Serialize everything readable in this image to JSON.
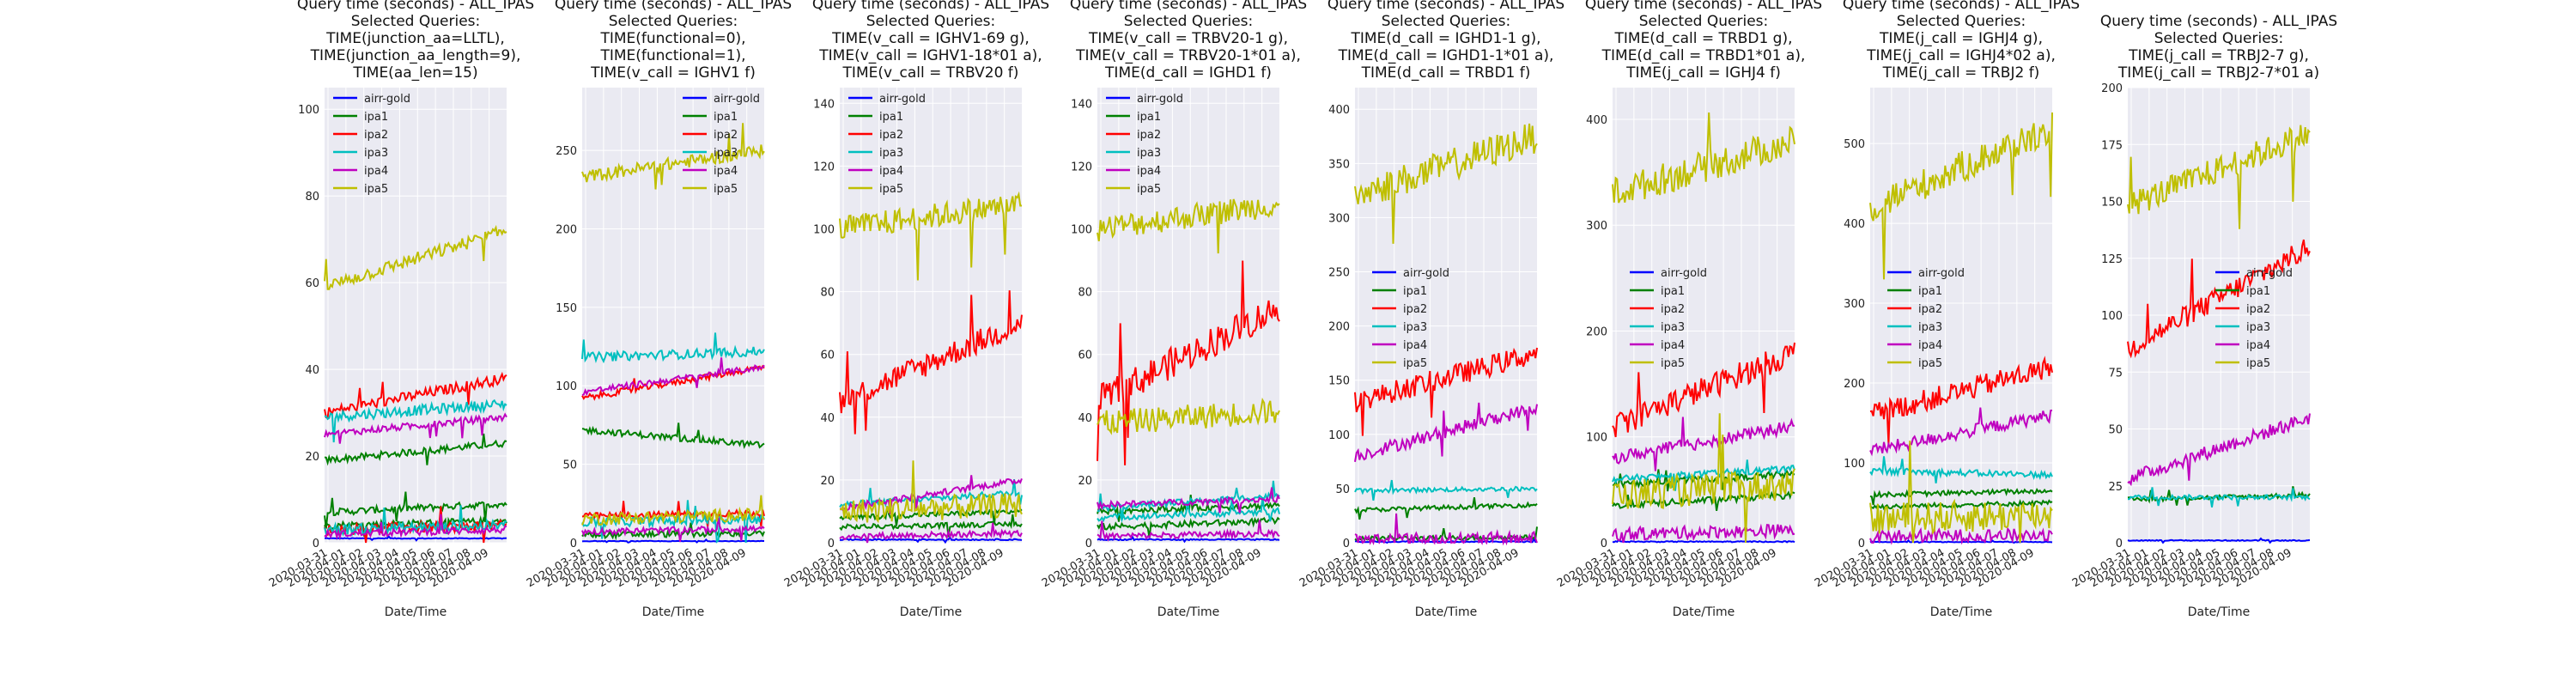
{
  "figure": {
    "colors": {
      "axes_bg": "#eaeaf2",
      "grid": "#ffffff",
      "airr-gold": "#0000ff",
      "ipa1": "#008000",
      "ipa2": "#ff0000",
      "ipa3": "#00bfbf",
      "ipa4": "#bf00bf",
      "ipa5": "#bfbf00"
    }
  },
  "chart_data": [
    {
      "type": "line",
      "title": [
        "Query time (seconds) - ALL_IPAS",
        "Selected Queries:",
        "TIME(junction_aa=LLTL),",
        "TIME(junction_aa_length=9),",
        "TIME(aa_len=15)"
      ],
      "xlabel": "Date/Time",
      "ylabel": "",
      "x_ticks": [
        "2020-03-31",
        "2020-04-01",
        "2020-04-02",
        "2020-04-03",
        "2020-04-04",
        "2020-04-05",
        "2020-04-06",
        "2020-04-07",
        "2020-04-08",
        "2020-04-09"
      ],
      "ylim": [
        0,
        105
      ],
      "y_ticks": [
        0,
        20,
        40,
        60,
        80,
        100
      ],
      "legend_position": "top-left",
      "grid": true,
      "series": [
        {
          "name": "airr-gold",
          "color": "#0000ff",
          "levels": [
            [
              1,
              1
            ]
          ],
          "noise": 0.1
        },
        {
          "name": "ipa1",
          "color": "#008000",
          "levels": [
            [
              19,
              23
            ],
            [
              7,
              9
            ],
            [
              4,
              5
            ]
          ],
          "noise": 0.8
        },
        {
          "name": "ipa2",
          "color": "#ff0000",
          "levels": [
            [
              30,
              38
            ],
            [
              3,
              4
            ]
          ],
          "noise": 1.2
        },
        {
          "name": "ipa3",
          "color": "#00bfbf",
          "levels": [
            [
              29,
              32
            ],
            [
              3,
              4
            ]
          ],
          "noise": 1.2
        },
        {
          "name": "ipa4",
          "color": "#bf00bf",
          "levels": [
            [
              25,
              29
            ],
            [
              2,
              3
            ]
          ],
          "noise": 0.8
        },
        {
          "name": "ipa5",
          "color": "#bfbf00",
          "levels": [
            [
              59,
              72
            ]
          ],
          "noise": 1.5
        }
      ]
    },
    {
      "type": "line",
      "title": [
        "Query time (seconds) - ALL_IPAS",
        "Selected Queries:",
        "TIME(functional=0),",
        "TIME(functional=1),",
        "TIME(v_call = IGHV1 f)"
      ],
      "xlabel": "Date/Time",
      "ylabel": "",
      "x_ticks": [
        "2020-03-31",
        "2020-04-01",
        "2020-04-02",
        "2020-04-03",
        "2020-04-04",
        "2020-04-05",
        "2020-04-06",
        "2020-04-07",
        "2020-04-08",
        "2020-04-09"
      ],
      "ylim": [
        0,
        290
      ],
      "y_ticks": [
        0,
        50,
        100,
        150,
        200,
        250
      ],
      "legend_position": "top-right",
      "grid": true,
      "series": [
        {
          "name": "airr-gold",
          "color": "#0000ff",
          "levels": [
            [
              1,
              1
            ]
          ],
          "noise": 0.2
        },
        {
          "name": "ipa1",
          "color": "#008000",
          "levels": [
            [
              72,
              62
            ],
            [
              5,
              6
            ]
          ],
          "noise": 2
        },
        {
          "name": "ipa2",
          "color": "#ff0000",
          "levels": [
            [
              92,
              112
            ],
            [
              17,
              19
            ]
          ],
          "noise": 2
        },
        {
          "name": "ipa3",
          "color": "#00bfbf",
          "levels": [
            [
              118,
              122
            ],
            [
              13,
              15
            ]
          ],
          "noise": 3
        },
        {
          "name": "ipa4",
          "color": "#bf00bf",
          "levels": [
            [
              96,
              112
            ],
            [
              7,
              9
            ]
          ],
          "noise": 2
        },
        {
          "name": "ipa5",
          "color": "#bfbf00",
          "levels": [
            [
              233,
              250
            ],
            [
              15,
              18
            ]
          ],
          "noise": 4
        }
      ]
    },
    {
      "type": "line",
      "title": [
        "Query time (seconds) - ALL_IPAS",
        "Selected Queries:",
        "TIME(v_call = IGHV1-69 g),",
        "TIME(v_call = IGHV1-18*01 a),",
        "TIME(v_call = TRBV20 f)"
      ],
      "xlabel": "Date/Time",
      "ylabel": "",
      "x_ticks": [
        "2020-03-31",
        "2020-04-01",
        "2020-04-02",
        "2020-04-03",
        "2020-04-04",
        "2020-04-05",
        "2020-04-06",
        "2020-04-07",
        "2020-04-08",
        "2020-04-09"
      ],
      "ylim": [
        0,
        145
      ],
      "y_ticks": [
        0,
        20,
        40,
        60,
        80,
        100,
        120,
        140
      ],
      "legend_position": "top-left",
      "grid": true,
      "series": [
        {
          "name": "airr-gold",
          "color": "#0000ff",
          "levels": [
            [
              1,
              1
            ]
          ],
          "noise": 0.2
        },
        {
          "name": "ipa1",
          "color": "#008000",
          "levels": [
            [
              8,
              10
            ],
            [
              5,
              6
            ]
          ],
          "noise": 0.8
        },
        {
          "name": "ipa2",
          "color": "#ff0000",
          "levels": [
            [
              45,
              70
            ]
          ],
          "noise": 4
        },
        {
          "name": "ipa3",
          "color": "#00bfbf",
          "levels": [
            [
              12,
              16
            ]
          ],
          "noise": 1
        },
        {
          "name": "ipa4",
          "color": "#bf00bf",
          "levels": [
            [
              11,
              20
            ],
            [
              2,
              3
            ]
          ],
          "noise": 1
        },
        {
          "name": "ipa5",
          "color": "#bfbf00",
          "levels": [
            [
              100,
              108
            ],
            [
              10,
              12
            ]
          ],
          "noise": 4
        }
      ]
    },
    {
      "type": "line",
      "title": [
        "Query time (seconds) - ALL_IPAS",
        "Selected Queries:",
        "TIME(v_call = TRBV20-1 g),",
        "TIME(v_call = TRBV20-1*01  a),",
        "TIME(d_call = IGHD1 f)"
      ],
      "xlabel": "Date/Time",
      "ylabel": "",
      "x_ticks": [
        "2020-03-31",
        "2020-04-01",
        "2020-04-02",
        "2020-04-03",
        "2020-04-04",
        "2020-04-05",
        "2020-04-06",
        "2020-04-07",
        "2020-04-08",
        "2020-04-09"
      ],
      "ylim": [
        0,
        145
      ],
      "y_ticks": [
        0,
        20,
        40,
        60,
        80,
        100,
        120,
        140
      ],
      "legend_position": "top-left",
      "grid": true,
      "series": [
        {
          "name": "airr-gold",
          "color": "#0000ff",
          "levels": [
            [
              1,
              1
            ]
          ],
          "noise": 0.2
        },
        {
          "name": "ipa1",
          "color": "#008000",
          "levels": [
            [
              10,
              12
            ],
            [
              5,
              7
            ]
          ],
          "noise": 1
        },
        {
          "name": "ipa2",
          "color": "#ff0000",
          "levels": [
            [
              45,
              75
            ]
          ],
          "noise": 5
        },
        {
          "name": "ipa3",
          "color": "#00bfbf",
          "levels": [
            [
              11,
              15
            ],
            [
              8,
              10
            ]
          ],
          "noise": 1
        },
        {
          "name": "ipa4",
          "color": "#bf00bf",
          "levels": [
            [
              12,
              14
            ],
            [
              2,
              3
            ]
          ],
          "noise": 1
        },
        {
          "name": "ipa5",
          "color": "#bfbf00",
          "levels": [
            [
              100,
              108
            ],
            [
              38,
              42
            ]
          ],
          "noise": 4
        }
      ]
    },
    {
      "type": "line",
      "title": [
        "Query time (seconds) - ALL_IPAS",
        "Selected Queries:",
        "TIME(d_call = IGHD1-1 g),",
        "TIME(d_call = IGHD1-1*01 a),",
        "TIME(d_call = TRBD1 f)"
      ],
      "xlabel": "Date/Time",
      "ylabel": "",
      "x_ticks": [
        "2020-03-31",
        "2020-04-01",
        "2020-04-02",
        "2020-04-03",
        "2020-04-04",
        "2020-04-05",
        "2020-04-06",
        "2020-04-07",
        "2020-04-08",
        "2020-04-09"
      ],
      "ylim": [
        0,
        420
      ],
      "y_ticks": [
        0,
        50,
        100,
        150,
        200,
        250,
        300,
        350,
        400
      ],
      "legend_position": "center-left",
      "grid": true,
      "series": [
        {
          "name": "airr-gold",
          "color": "#0000ff",
          "levels": [
            [
              1,
              1
            ]
          ],
          "noise": 0.5
        },
        {
          "name": "ipa1",
          "color": "#008000",
          "levels": [
            [
              30,
              35
            ],
            [
              4,
              5
            ]
          ],
          "noise": 2
        },
        {
          "name": "ipa2",
          "color": "#ff0000",
          "levels": [
            [
              130,
              175
            ]
          ],
          "noise": 10
        },
        {
          "name": "ipa3",
          "color": "#00bfbf",
          "levels": [
            [
              48,
              50
            ]
          ],
          "noise": 2
        },
        {
          "name": "ipa4",
          "color": "#bf00bf",
          "levels": [
            [
              80,
              125
            ],
            [
              3,
              4
            ]
          ],
          "noise": 6
        },
        {
          "name": "ipa5",
          "color": "#bfbf00",
          "levels": [
            [
              320,
              375
            ]
          ],
          "noise": 15
        }
      ]
    },
    {
      "type": "line",
      "title": [
        "Query time (seconds) - ALL_IPAS",
        "Selected Queries:",
        "TIME(d_call = TRBD1 g),",
        "TIME(d_call = TRBD1*01 a),",
        "TIME(j_call = IGHJ4 f)"
      ],
      "xlabel": "Date/Time",
      "ylabel": "",
      "x_ticks": [
        "2020-03-31",
        "2020-04-01",
        "2020-04-02",
        "2020-04-03",
        "2020-04-04",
        "2020-04-05",
        "2020-04-06",
        "2020-04-07",
        "2020-04-08",
        "2020-04-09"
      ],
      "ylim": [
        0,
        430
      ],
      "y_ticks": [
        0,
        100,
        200,
        300,
        400
      ],
      "legend_position": "center-left",
      "grid": true,
      "series": [
        {
          "name": "airr-gold",
          "color": "#0000ff",
          "levels": [
            [
              1,
              1
            ]
          ],
          "noise": 0.5
        },
        {
          "name": "ipa1",
          "color": "#008000",
          "levels": [
            [
              55,
              65
            ],
            [
              35,
              45
            ]
          ],
          "noise": 3
        },
        {
          "name": "ipa2",
          "color": "#ff0000",
          "levels": [
            [
              110,
              180
            ]
          ],
          "noise": 12
        },
        {
          "name": "ipa3",
          "color": "#00bfbf",
          "levels": [
            [
              60,
              70
            ]
          ],
          "noise": 3
        },
        {
          "name": "ipa4",
          "color": "#bf00bf",
          "levels": [
            [
              80,
              110
            ],
            [
              8,
              12
            ]
          ],
          "noise": 6
        },
        {
          "name": "ipa5",
          "color": "#bfbf00",
          "levels": [
            [
              330,
              380
            ],
            [
              45,
              55
            ]
          ],
          "noise": 15
        }
      ]
    },
    {
      "type": "line",
      "title": [
        "Query time (seconds) - ALL_IPAS",
        "Selected Queries:",
        "TIME(j_call = IGHJ4 g),",
        "TIME(j_call = IGHJ4*02 a),",
        "TIME(j_call = TRBJ2 f)"
      ],
      "xlabel": "Date/Time",
      "ylabel": "",
      "x_ticks": [
        "2020-03-31",
        "2020-04-01",
        "2020-04-02",
        "2020-04-03",
        "2020-04-04",
        "2020-04-05",
        "2020-04-06",
        "2020-04-07",
        "2020-04-08",
        "2020-04-09"
      ],
      "ylim": [
        0,
        570
      ],
      "y_ticks": [
        0,
        100,
        200,
        300,
        400,
        500
      ],
      "legend_position": "center-left",
      "grid": true,
      "series": [
        {
          "name": "airr-gold",
          "color": "#0000ff",
          "levels": [
            [
              1,
              1
            ]
          ],
          "noise": 0.5
        },
        {
          "name": "ipa1",
          "color": "#008000",
          "levels": [
            [
              60,
              65
            ],
            [
              45,
              50
            ]
          ],
          "noise": 3
        },
        {
          "name": "ipa2",
          "color": "#ff0000",
          "levels": [
            [
              160,
              220
            ]
          ],
          "noise": 14
        },
        {
          "name": "ipa3",
          "color": "#00bfbf",
          "levels": [
            [
              90,
              85
            ]
          ],
          "noise": 4
        },
        {
          "name": "ipa4",
          "color": "#bf00bf",
          "levels": [
            [
              115,
              160
            ],
            [
              8,
              10
            ]
          ],
          "noise": 8
        },
        {
          "name": "ipa5",
          "color": "#bfbf00",
          "levels": [
            [
              420,
              520
            ],
            [
              30,
              35
            ]
          ],
          "noise": 20
        }
      ]
    },
    {
      "type": "line",
      "title": [
        "Query time (seconds) - ALL_IPAS",
        "Selected Queries:",
        "TIME(j_call = TRBJ2-7 g),",
        "TIME(j_call = TRBJ2-7*01 a)"
      ],
      "xlabel": "Date/Time",
      "ylabel": "",
      "x_ticks": [
        "2020-03-31",
        "2020-04-01",
        "2020-04-02",
        "2020-04-03",
        "2020-04-04",
        "2020-04-05",
        "2020-04-06",
        "2020-04-07",
        "2020-04-08",
        "2020-04-09"
      ],
      "ylim": [
        0,
        200
      ],
      "y_ticks": [
        0,
        25,
        50,
        75,
        100,
        125,
        150,
        175,
        200
      ],
      "legend_position": "center-right",
      "grid": true,
      "series": [
        {
          "name": "airr-gold",
          "color": "#0000ff",
          "levels": [
            [
              1,
              1
            ]
          ],
          "noise": 0.2
        },
        {
          "name": "ipa1",
          "color": "#008000",
          "levels": [
            [
              19,
              21
            ]
          ],
          "noise": 1
        },
        {
          "name": "ipa2",
          "color": "#ff0000",
          "levels": [
            [
              85,
              130
            ]
          ],
          "noise": 5
        },
        {
          "name": "ipa3",
          "color": "#00bfbf",
          "levels": [
            [
              20,
              20
            ]
          ],
          "noise": 1
        },
        {
          "name": "ipa4",
          "color": "#bf00bf",
          "levels": [
            [
              28,
              55
            ]
          ],
          "noise": 3
        },
        {
          "name": "ipa5",
          "color": "#bfbf00",
          "levels": [
            [
              148,
              180
            ]
          ],
          "noise": 6
        }
      ]
    }
  ]
}
